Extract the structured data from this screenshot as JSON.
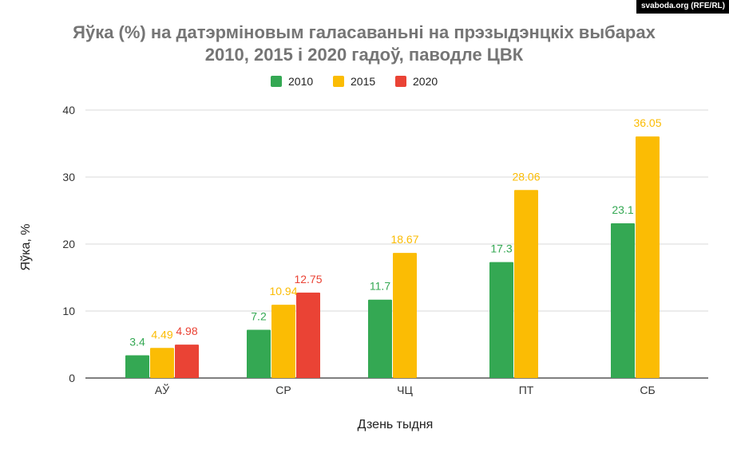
{
  "credit": "svaboda.org (RFE/RL)",
  "colors": {
    "2010": "#34A853",
    "2015": "#FBBC04",
    "2020": "#EA4335"
  },
  "chart_data": {
    "type": "bar",
    "title_lines": [
      "Яўка (%) на датэрміновым галасаваньні на прэзыдэнцкіх выбарах",
      "2010, 2015 і 2020 гадоў, паводле ЦВК"
    ],
    "xlabel": "Дзень тыдня",
    "ylabel": "Яўка, %",
    "ylim": [
      0,
      40
    ],
    "yticks": [
      0,
      10,
      20,
      30,
      40
    ],
    "grid": true,
    "legend_position": "top",
    "categories": [
      "АЎ",
      "СР",
      "ЧЦ",
      "ПТ",
      "СБ"
    ],
    "series": [
      {
        "name": "2010",
        "color": "#34A853",
        "values": [
          3.4,
          7.2,
          11.7,
          17.3,
          23.1
        ],
        "labels": [
          "3.4",
          "7.2",
          "11.7",
          "17.3",
          "23.1"
        ]
      },
      {
        "name": "2015",
        "color": "#FBBC04",
        "values": [
          4.49,
          10.94,
          18.67,
          28.06,
          36.05
        ],
        "labels": [
          "4.49",
          "10.94",
          "18.67",
          "28.06",
          "36.05"
        ]
      },
      {
        "name": "2020",
        "color": "#EA4335",
        "values": [
          4.98,
          12.75,
          null,
          null,
          null
        ],
        "labels": [
          "4.98",
          "12.75",
          null,
          null,
          null
        ]
      }
    ]
  }
}
